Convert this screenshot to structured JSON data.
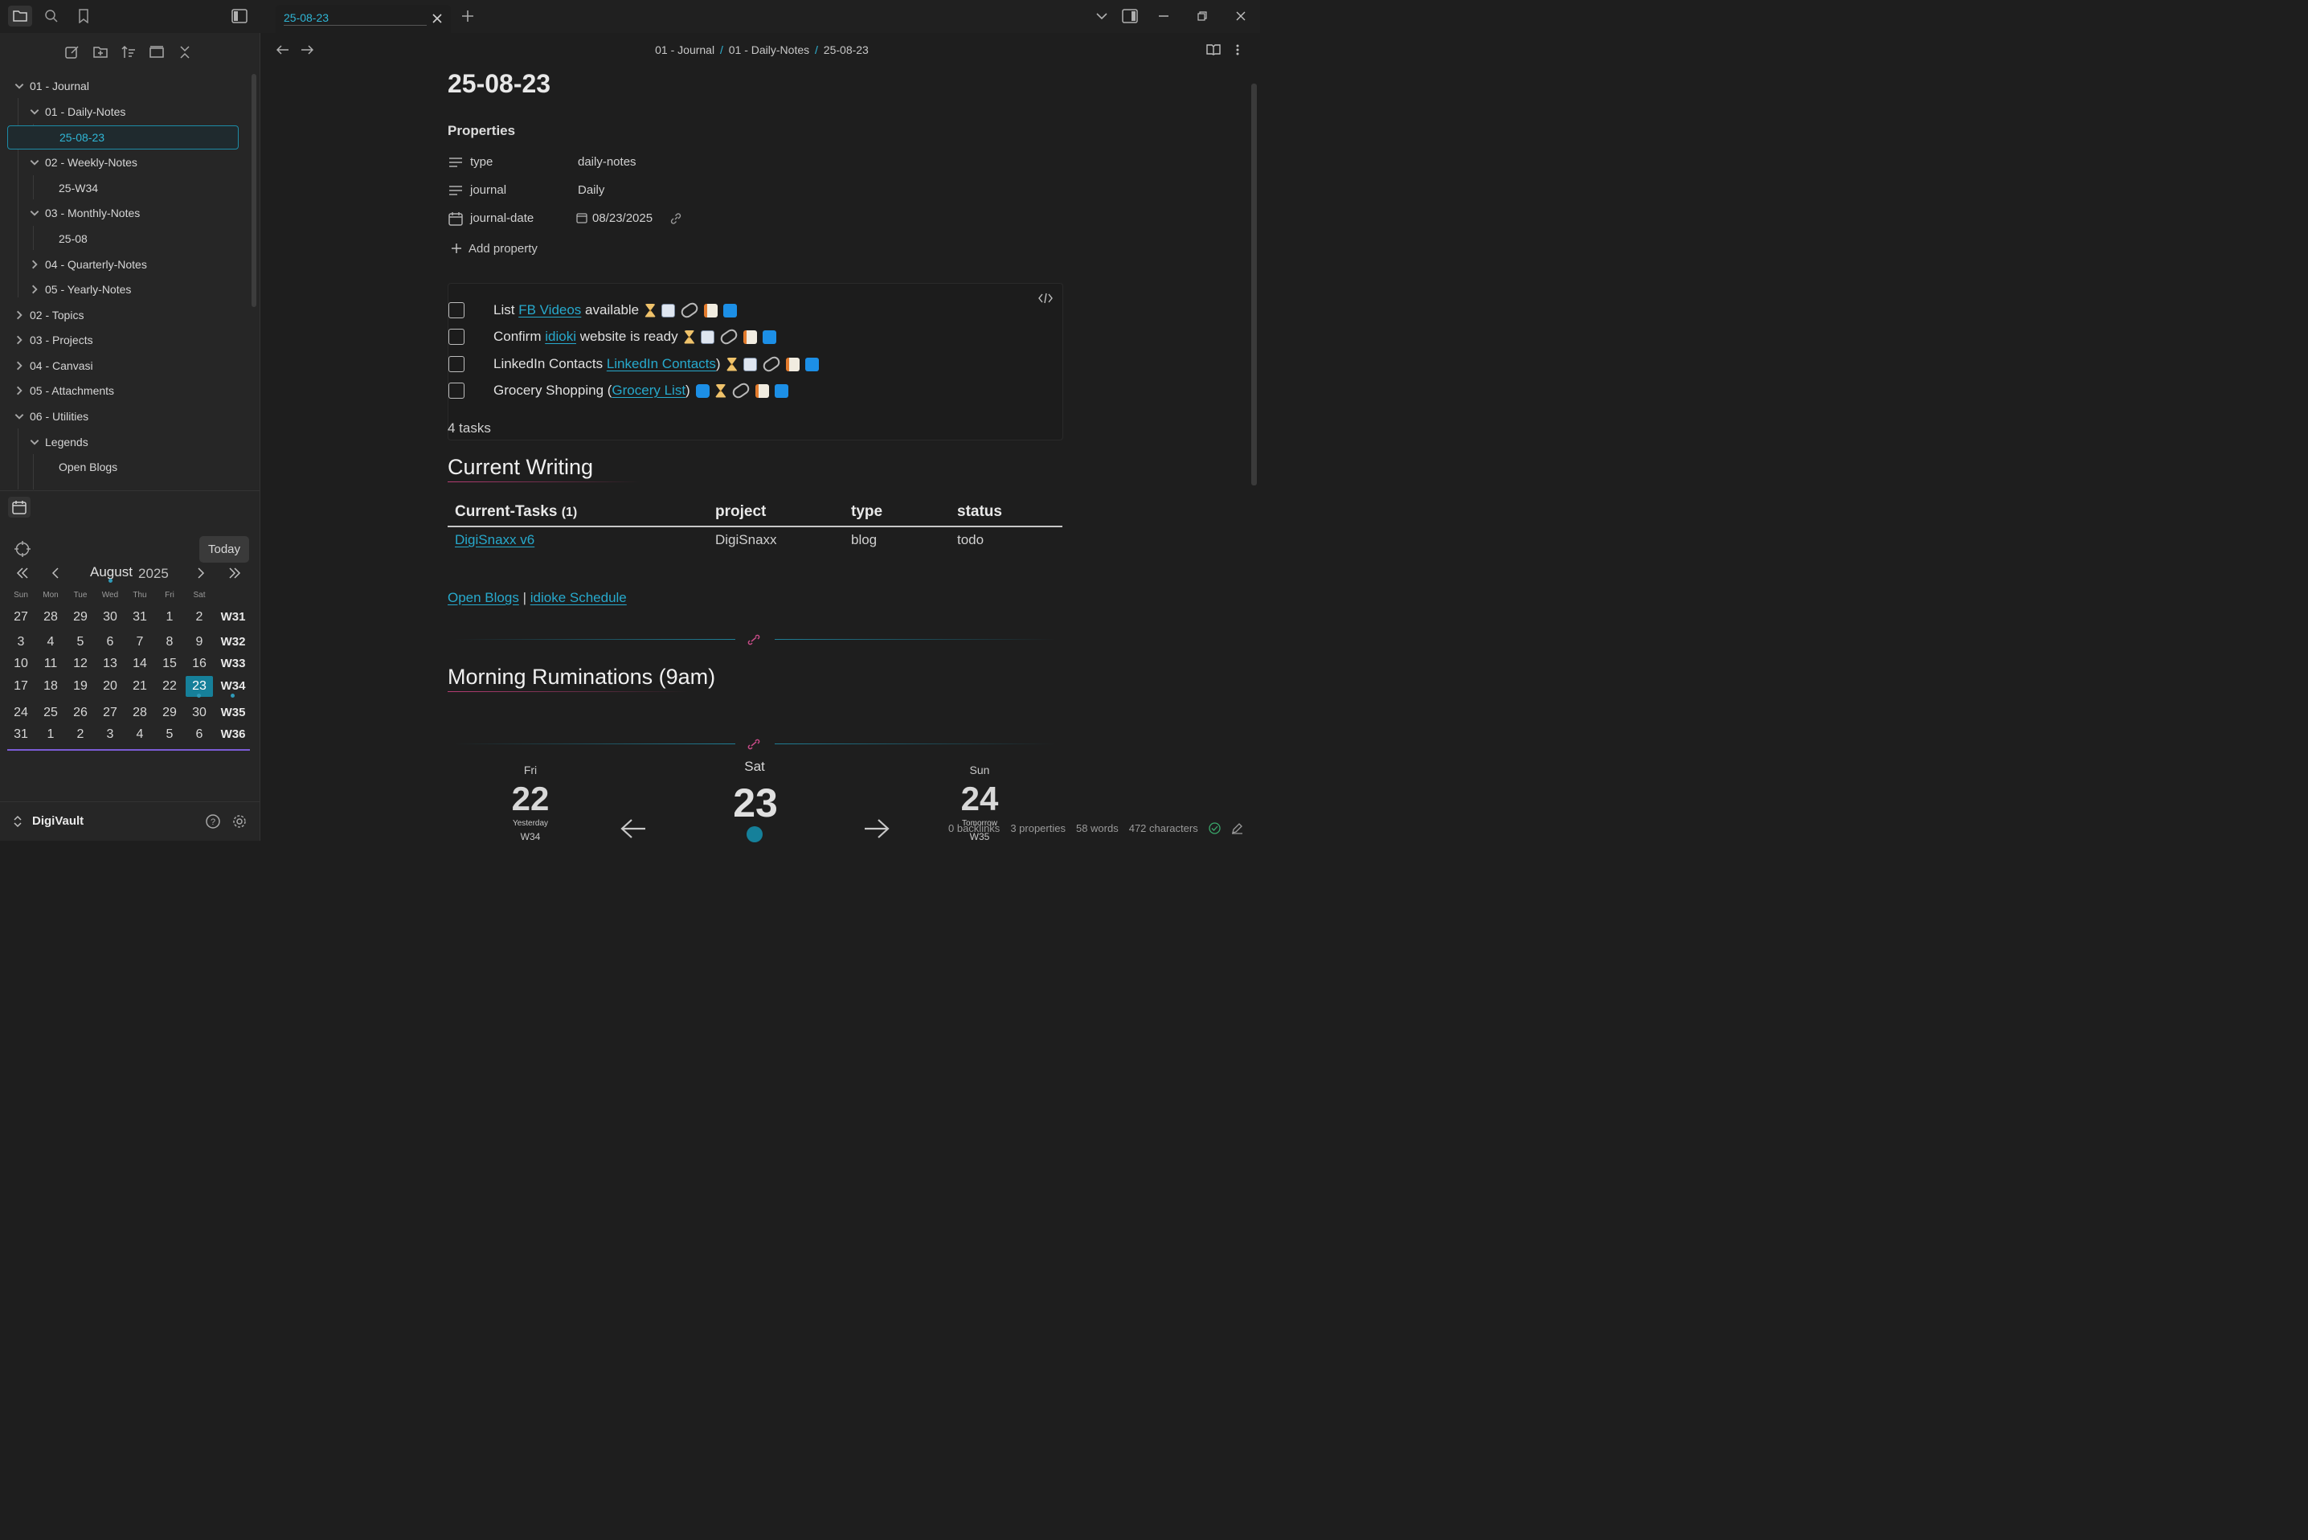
{
  "tab": {
    "title": "25-08-23"
  },
  "breadcrumb": {
    "part1": "01 - Journal",
    "sep": "/",
    "part2": "01 - Daily-Notes",
    "part3": "25-08-23"
  },
  "sidebar": {
    "tree": [
      {
        "label": "01 - Journal",
        "expanded": true
      },
      {
        "label": "01 - Daily-Notes",
        "expanded": true
      },
      {
        "label": "25-08-23",
        "active": true
      },
      {
        "label": "02 - Weekly-Notes",
        "expanded": true
      },
      {
        "label": "25-W34"
      },
      {
        "label": "03 - Monthly-Notes",
        "expanded": true
      },
      {
        "label": "25-08"
      },
      {
        "label": "04 - Quarterly-Notes",
        "expanded": false
      },
      {
        "label": "05 - Yearly-Notes",
        "expanded": false
      },
      {
        "label": "02 - Topics",
        "expanded": false
      },
      {
        "label": "03 - Projects",
        "expanded": false
      },
      {
        "label": "04 - Canvasi",
        "expanded": false
      },
      {
        "label": "05 - Attachments",
        "expanded": false
      },
      {
        "label": "06 - Utilities",
        "expanded": true
      },
      {
        "label": "Legends",
        "expanded": true
      },
      {
        "label": "Open Blogs"
      }
    ],
    "vault_name": "DigiVault"
  },
  "calendar": {
    "today_label": "Today",
    "month": "August",
    "year": "2025",
    "dow": [
      "Sun",
      "Mon",
      "Tue",
      "Wed",
      "Thu",
      "Fri",
      "Sat"
    ],
    "weeks": [
      {
        "days": [
          "27",
          "28",
          "29",
          "30",
          "31",
          "1",
          "2"
        ],
        "week": "W31"
      },
      {
        "days": [
          "3",
          "4",
          "5",
          "6",
          "7",
          "8",
          "9"
        ],
        "week": "W32"
      },
      {
        "days": [
          "10",
          "11",
          "12",
          "13",
          "14",
          "15",
          "16"
        ],
        "week": "W33"
      },
      {
        "days": [
          "17",
          "18",
          "19",
          "20",
          "21",
          "22",
          "23"
        ],
        "week": "W34"
      },
      {
        "days": [
          "24",
          "25",
          "26",
          "27",
          "28",
          "29",
          "30"
        ],
        "week": "W35"
      },
      {
        "days": [
          "31",
          "1",
          "2",
          "3",
          "4",
          "5",
          "6"
        ],
        "week": "W36"
      }
    ],
    "selected_day": "23"
  },
  "note": {
    "title": "25-08-23",
    "properties_heading": "Properties",
    "properties": [
      {
        "key": "type",
        "value": "daily-notes"
      },
      {
        "key": "journal",
        "value": "Daily"
      },
      {
        "key": "journal-date",
        "value": "08/23/2025"
      }
    ],
    "add_property": "Add property",
    "tasks": [
      {
        "pre": "List ",
        "link": "FB Videos",
        "post": " available",
        "icons": [
          "hour",
          "cal",
          "chain",
          "memo",
          "ff"
        ]
      },
      {
        "pre": "Confirm ",
        "link": "idioki",
        "post": " website is ready",
        "icons": [
          "hour",
          "cal",
          "chain",
          "memo",
          "ff"
        ]
      },
      {
        "pre": "LinkedIn Contacts ",
        "link": "LinkedIn Contacts",
        "post": ")",
        "icons": [
          "hour",
          "cal",
          "chain",
          "memo",
          "ff"
        ]
      },
      {
        "pre": "Grocery Shopping (",
        "link": "Grocery List",
        "post": ")",
        "icons": [
          "rep",
          "hour",
          "chain",
          "memo",
          "ff"
        ]
      }
    ],
    "task_count": "4 tasks",
    "current_writing_heading": "Current Writing",
    "table": {
      "headers": [
        "Current-Tasks",
        "project",
        "type",
        "status"
      ],
      "count": "(1)",
      "rows": [
        {
          "name": "DigiSnaxx v6",
          "project": "DigiSnaxx",
          "type": "blog",
          "status": "todo"
        }
      ]
    },
    "links_line": {
      "a": "Open Blogs",
      "sep": "|",
      "b": "idioke Schedule"
    },
    "morning_heading": "Morning Ruminations (9am)",
    "nav": {
      "prev": {
        "dow": "Fri",
        "day": "22",
        "label": "Yesterday",
        "week": "W34"
      },
      "cur": {
        "dow": "Sat",
        "day": "23"
      },
      "next": {
        "dow": "Sun",
        "day": "24",
        "label": "Tomorrow",
        "week": "W35"
      }
    }
  },
  "status_bar": {
    "backlinks": "0 backlinks",
    "properties": "3 properties",
    "words": "58 words",
    "characters": "472 characters"
  },
  "colors": {
    "accent": "#27a9cc",
    "heading_line": "#b83d74",
    "today_bg": "#16809a"
  }
}
